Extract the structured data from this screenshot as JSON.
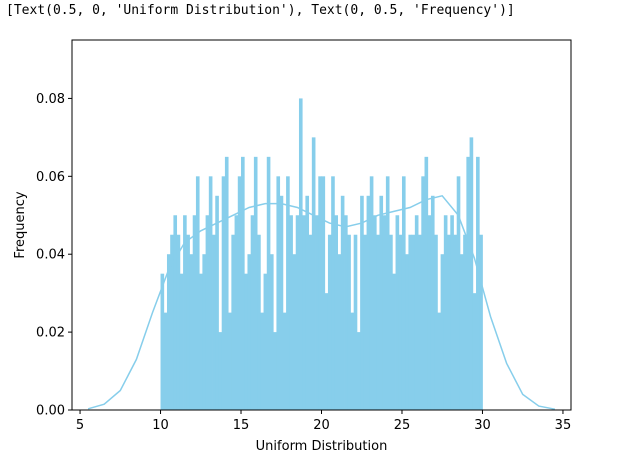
{
  "output_text": "[Text(0.5, 0, 'Uniform Distribution'), Text(0, 0.5, 'Frequency')]",
  "colors": {
    "bar": "#87ceeb",
    "kde": "#87ceeb",
    "axis": "#000000"
  },
  "chart_data": {
    "type": "bar",
    "title": "",
    "xlabel": "Uniform Distribution",
    "ylabel": "Frequency",
    "xlim": [
      4.5,
      35.5
    ],
    "ylim": [
      0,
      0.095
    ],
    "xticks": [
      "5",
      "10",
      "15",
      "20",
      "25",
      "30",
      "35"
    ],
    "yticks": [
      "0.00",
      "0.02",
      "0.04",
      "0.06",
      "0.08"
    ],
    "grid": false,
    "bins": {
      "start": 10.0,
      "end": 30.0,
      "count": 100,
      "width": 0.2
    },
    "values": [
      0.035,
      0.025,
      0.04,
      0.045,
      0.05,
      0.045,
      0.035,
      0.05,
      0.045,
      0.04,
      0.05,
      0.06,
      0.035,
      0.04,
      0.05,
      0.06,
      0.045,
      0.055,
      0.02,
      0.06,
      0.065,
      0.025,
      0.045,
      0.05,
      0.06,
      0.065,
      0.035,
      0.04,
      0.05,
      0.065,
      0.045,
      0.025,
      0.035,
      0.065,
      0.04,
      0.02,
      0.06,
      0.055,
      0.025,
      0.06,
      0.05,
      0.04,
      0.05,
      0.08,
      0.05,
      0.055,
      0.045,
      0.07,
      0.05,
      0.06,
      0.06,
      0.03,
      0.045,
      0.06,
      0.05,
      0.04,
      0.055,
      0.05,
      0.045,
      0.025,
      0.045,
      0.02,
      0.055,
      0.045,
      0.055,
      0.06,
      0.05,
      0.045,
      0.055,
      0.05,
      0.06,
      0.045,
      0.035,
      0.05,
      0.045,
      0.06,
      0.04,
      0.045,
      0.045,
      0.05,
      0.045,
      0.06,
      0.065,
      0.05,
      0.055,
      0.045,
      0.025,
      0.04,
      0.05,
      0.045,
      0.05,
      0.045,
      0.06,
      0.04,
      0.045,
      0.065,
      0.07,
      0.03,
      0.065,
      0.045
    ],
    "kde": {
      "x": [
        5.5,
        6.5,
        7.5,
        8.5,
        9.5,
        10.5,
        11.5,
        12.5,
        13.5,
        14.5,
        15.5,
        16.5,
        17.5,
        18.5,
        19.5,
        20.5,
        21.5,
        22.5,
        23.5,
        24.5,
        25.5,
        26.5,
        27.5,
        28.5,
        29.5,
        30.5,
        31.5,
        32.5,
        33.5,
        34.5
      ],
      "y": [
        0.0003,
        0.0015,
        0.005,
        0.013,
        0.025,
        0.036,
        0.043,
        0.046,
        0.048,
        0.05,
        0.052,
        0.053,
        0.053,
        0.052,
        0.05,
        0.048,
        0.047,
        0.048,
        0.05,
        0.051,
        0.052,
        0.054,
        0.055,
        0.05,
        0.039,
        0.024,
        0.012,
        0.004,
        0.001,
        0.0002
      ]
    }
  }
}
